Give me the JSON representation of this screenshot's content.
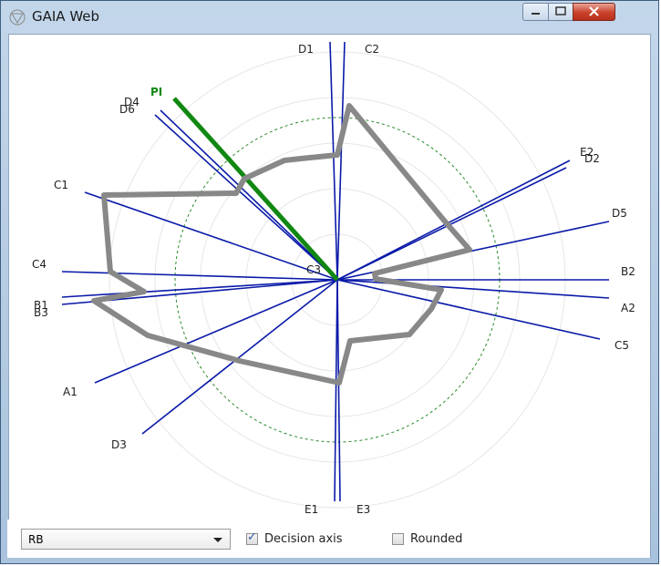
{
  "window": {
    "title": "GAIA Web",
    "icon": "gaia-logo-icon",
    "controls": [
      "minimize-icon",
      "maximize-icon",
      "close-icon"
    ]
  },
  "plot": {
    "pi_label": "PI",
    "pi_color": "#118811",
    "axis_color": "#0a1aa8",
    "polygon_color": "#888888",
    "labels": {
      "D1": "D1",
      "C2": "C2",
      "D4": "D4",
      "D6": "D6",
      "PI": "PI",
      "E2": "E2",
      "D2": "D2",
      "C1": "C1",
      "D5": "D5",
      "C4": "C4",
      "C3": "C3",
      "B2": "B2",
      "B1": "B1",
      "B3": "B3",
      "A2": "A2",
      "C5": "C5",
      "A1": "A1",
      "D3": "D3",
      "E1": "E1",
      "E3": "E3"
    }
  },
  "controls": {
    "select_value": "RB",
    "decision_axis_label": "Decision axis",
    "decision_axis_checked": true,
    "rounded_label": "Rounded",
    "rounded_checked": false
  }
}
